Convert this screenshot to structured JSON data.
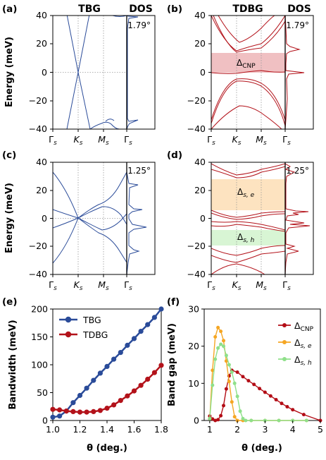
{
  "panels": {
    "a": {
      "label": "(a)",
      "title": "TBG",
      "dos_title": "DOS",
      "angle": "1.79°"
    },
    "b": {
      "label": "(b)",
      "title": "TDBG",
      "dos_title": "DOS",
      "angle": "1.79°",
      "gap_label": "Δ",
      "gap_sub": "CNP"
    },
    "c": {
      "label": "(c)",
      "angle": "1.25°"
    },
    "d": {
      "label": "(d)",
      "angle": "1.25°",
      "gap_e": "Δ",
      "gap_e_sub": "s, e",
      "gap_h": "Δ",
      "gap_h_sub": "s, h"
    },
    "e": {
      "label": "(e)"
    },
    "f": {
      "label": "(f)"
    }
  },
  "band_axis": {
    "ylabel": "Energy (meV)",
    "yticks": [
      "40",
      "20",
      "0",
      "−20",
      "−40"
    ],
    "kpoints": [
      {
        "m": "Γ",
        "s": "s"
      },
      {
        "m": "K",
        "s": "s"
      },
      {
        "m": "M",
        "s": "s"
      },
      {
        "m": "Γ",
        "s": "s"
      }
    ]
  },
  "colors": {
    "tbg": "#2a4b99",
    "tdbg": "#b3121a",
    "cnp": "#b30d16",
    "se": "#f5a623",
    "sh": "#8fe08a",
    "gap_red": "#f0c0c2",
    "gap_orange": "#fde3c0",
    "gap_green": "#d8f5d4"
  },
  "chart_data": [
    {
      "type": "line",
      "panel": "e",
      "xlabel": "θ (deg.)",
      "ylabel": "Bandwidth (meV)",
      "xlim": [
        1.0,
        1.8
      ],
      "ylim": [
        0,
        200
      ],
      "xticks": [
        "1.0",
        "1.2",
        "1.4",
        "1.6",
        "1.8"
      ],
      "yticks": [
        "0",
        "50",
        "100",
        "150",
        "200"
      ],
      "legend_position": "top-left",
      "series": [
        {
          "name": "TBG",
          "color": "#2a4b99",
          "x": [
            1.0,
            1.05,
            1.1,
            1.15,
            1.2,
            1.25,
            1.3,
            1.35,
            1.4,
            1.45,
            1.5,
            1.55,
            1.6,
            1.65,
            1.7,
            1.75,
            1.8
          ],
          "y": [
            6,
            8,
            17,
            32,
            45,
            58,
            72,
            85,
            97,
            110,
            122,
            135,
            147,
            160,
            172,
            185,
            200
          ]
        },
        {
          "name": "TDBG",
          "color": "#b3121a",
          "x": [
            1.0,
            1.05,
            1.1,
            1.15,
            1.2,
            1.25,
            1.3,
            1.35,
            1.4,
            1.45,
            1.5,
            1.55,
            1.6,
            1.65,
            1.7,
            1.75,
            1.8
          ],
          "y": [
            20,
            19,
            17,
            16,
            15,
            15,
            16,
            18,
            22,
            28,
            36,
            44,
            53,
            63,
            74,
            86,
            99
          ]
        }
      ]
    },
    {
      "type": "line",
      "panel": "f",
      "xlabel": "θ (deg.)",
      "ylabel": "Band gap (meV)",
      "xlim": [
        0.8,
        5.0
      ],
      "ylim": [
        0,
        30
      ],
      "xticks": [
        "1",
        "2",
        "3",
        "4",
        "5"
      ],
      "yticks": [
        "0",
        "10",
        "20",
        "30"
      ],
      "legend_position": "top-right",
      "series": [
        {
          "name": "Δ",
          "sub": "CNP",
          "color": "#b30d16",
          "x": [
            1.0,
            1.1,
            1.2,
            1.3,
            1.4,
            1.5,
            1.6,
            1.7,
            1.8,
            2.0,
            2.2,
            2.4,
            2.6,
            2.8,
            3.0,
            3.2,
            3.4,
            3.6,
            3.8,
            4.0,
            4.4,
            5.0
          ],
          "y": [
            1.2,
            0.4,
            0.0,
            0.2,
            1.3,
            4.0,
            8.5,
            12.0,
            13.5,
            13.0,
            11.8,
            10.7,
            9.7,
            8.6,
            7.6,
            6.6,
            5.6,
            4.6,
            3.7,
            2.9,
            1.6,
            0.0
          ]
        },
        {
          "name": "Δ",
          "sub": "s, e",
          "color": "#f5a623",
          "x": [
            1.0,
            1.1,
            1.2,
            1.3,
            1.4,
            1.5,
            1.6,
            1.7,
            1.8,
            1.9,
            2.0,
            2.2,
            2.5,
            3.0,
            3.5,
            4.0,
            4.5
          ],
          "y": [
            0.5,
            13.5,
            22.5,
            25.0,
            24.0,
            21.5,
            16.0,
            10.5,
            5.0,
            1.0,
            0.0,
            0.0,
            0.0,
            0.0,
            0.0,
            0.0,
            0.0
          ]
        },
        {
          "name": "Δ",
          "sub": "s, h",
          "color": "#8fe08a",
          "x": [
            1.0,
            1.1,
            1.2,
            1.3,
            1.4,
            1.5,
            1.6,
            1.7,
            1.8,
            1.9,
            2.0,
            2.1,
            2.2,
            2.3,
            2.5,
            3.0,
            3.5,
            4.0,
            4.5
          ],
          "y": [
            0.5,
            9.5,
            16.5,
            19.5,
            20.5,
            20.0,
            17.5,
            15.0,
            13.0,
            10.0,
            6.5,
            2.5,
            0.5,
            0.0,
            0.0,
            0.0,
            0.0,
            0.0,
            0.0
          ]
        }
      ]
    }
  ]
}
